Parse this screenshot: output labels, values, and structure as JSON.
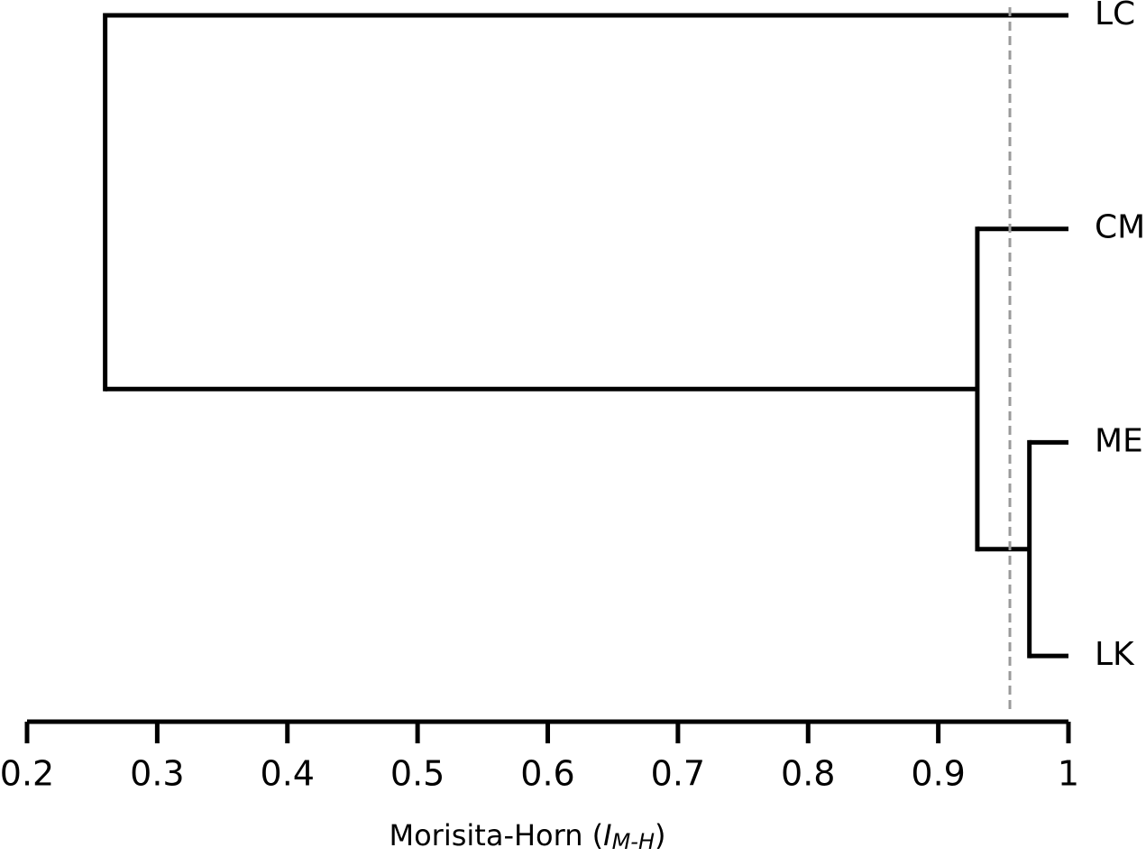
{
  "chart_data": {
    "type": "dendrogram",
    "leaves": [
      "LC",
      "CM",
      "ME",
      "LK"
    ],
    "merges": [
      {
        "children": [
          2,
          3
        ],
        "value": 0.97
      },
      {
        "children": [
          1,
          4
        ],
        "value": 0.93
      },
      {
        "children": [
          0,
          5
        ],
        "value": 0.26
      }
    ],
    "cutoff": 0.955,
    "cutoff_color": "#9a9a9a",
    "color": "#000000",
    "xlim": [
      0.2,
      1
    ],
    "xticks": [
      0.2,
      0.3,
      0.4,
      0.5,
      0.6,
      0.7,
      0.8,
      0.9,
      1
    ],
    "x_label": [
      "Morisita-Horn (",
      "I",
      "M-H",
      ")"
    ]
  }
}
